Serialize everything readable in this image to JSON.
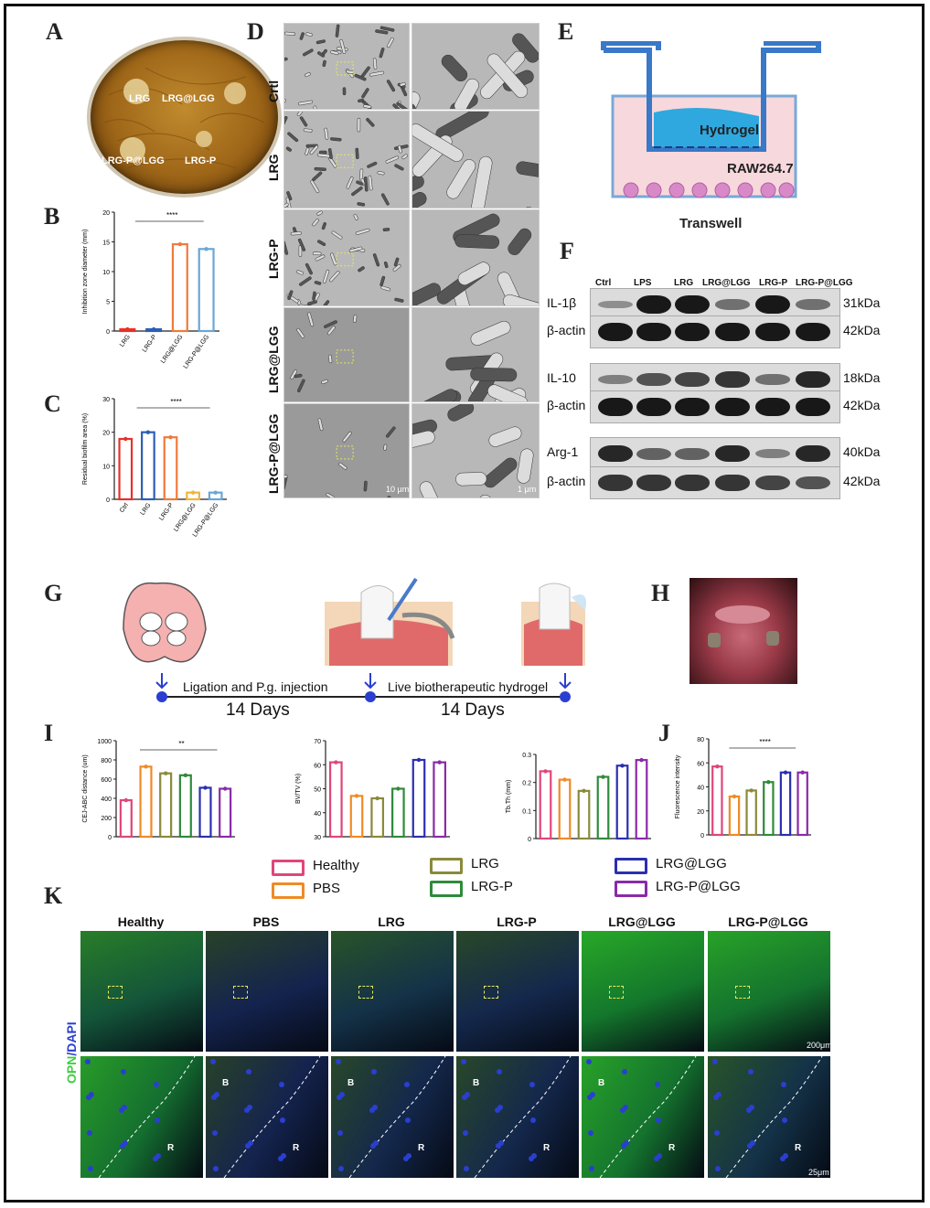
{
  "panels": {
    "A": "A",
    "B": "B",
    "C": "C",
    "D": "D",
    "E": "E",
    "F": "F",
    "G": "G",
    "H": "H",
    "I": "I",
    "J": "J",
    "K": "K"
  },
  "panelA": {
    "labels": [
      "LRG",
      "LRG@LGG",
      "LRG-P@LGG",
      "LRG-P"
    ]
  },
  "panelD": {
    "rows": [
      "Crtl",
      "LRG",
      "LRG-P",
      "LRG@LGG",
      "LRG-P@LGG"
    ],
    "scale_left": "10 μm",
    "scale_right": "1 μm"
  },
  "panelE": {
    "hydrogel": "Hydrogel",
    "cells": "RAW264.7",
    "transwell": "Transwell"
  },
  "panelF": {
    "lanes": [
      "Ctrl",
      "LPS",
      "LRG",
      "LRG@LGG",
      "LRG-P",
      "LRG-P@LGG"
    ],
    "rows": [
      {
        "label": "IL-1β",
        "kda": "31kDa"
      },
      {
        "label": "β-actin",
        "kda": "42kDa"
      },
      {
        "label": "IL-10",
        "kda": "18kDa"
      },
      {
        "label": "β-actin",
        "kda": "42kDa"
      },
      {
        "label": "Arg-1",
        "kda": "40kDa"
      },
      {
        "label": "β-actin",
        "kda": "42kDa"
      }
    ]
  },
  "panelG": {
    "step1": "Ligation and P.g. injection",
    "days1": "14 Days",
    "step2": "Live biotherapeutic hydrogel",
    "days2": "14 Days"
  },
  "legend": [
    {
      "name": "Healthy",
      "color": "#e0457b"
    },
    {
      "name": "PBS",
      "color": "#f08a24"
    },
    {
      "name": "LRG",
      "color": "#8a8a3a"
    },
    {
      "name": "LRG-P",
      "color": "#2e8b3a"
    },
    {
      "name": "LRG@LGG",
      "color": "#2a2fb0"
    },
    {
      "name": "LRG-P@LGG",
      "color": "#8a2aa8"
    }
  ],
  "panelK": {
    "cols": [
      "Healthy",
      "PBS",
      "LRG",
      "LRG-P",
      "LRG@LGG",
      "LRG-P@LGG"
    ],
    "side_label_opn": "OPN",
    "side_label_dapi": "/DAPI",
    "scale_top": "200μm",
    "scale_bottom": "25μm",
    "B": "B",
    "R": "R"
  },
  "chart_data": [
    {
      "id": "B",
      "type": "bar",
      "categories": [
        "LRG",
        "LRG-P",
        "LRG@LGG",
        "LRG-P@LGG"
      ],
      "values": [
        0.3,
        0.3,
        14.6,
        13.8
      ],
      "colors": [
        "#e8302a",
        "#2b5fb4",
        "#f07a3a",
        "#6aa6d6"
      ],
      "ylabel": "Inhibition zone diameter (mm)",
      "ylim": [
        0,
        20
      ],
      "yticks": [
        0,
        5,
        10,
        15,
        20
      ],
      "sig": "****"
    },
    {
      "id": "C",
      "type": "bar",
      "categories": [
        "Ctrl",
        "LRG",
        "LRG-P",
        "LRG@LGG",
        "LRG-P@LGG"
      ],
      "values": [
        18,
        20,
        18.5,
        2,
        2
      ],
      "colors": [
        "#e8302a",
        "#2b5fb4",
        "#f07a3a",
        "#f0b43a",
        "#6aa6d6"
      ],
      "ylabel": "Residual biofilm area (%)",
      "ylim": [
        0,
        30
      ],
      "yticks": [
        0,
        10,
        20,
        30
      ],
      "sig": "****"
    },
    {
      "id": "I1",
      "type": "bar",
      "categories": [
        "Healthy",
        "PBS",
        "LRG",
        "LRG-P",
        "LRG@LGG",
        "LRG-P@LGG"
      ],
      "values": [
        380,
        730,
        660,
        640,
        510,
        500
      ],
      "ylabel": "CEJ-ABC distance (um)",
      "ylim": [
        0,
        1000
      ],
      "yticks": [
        0,
        200,
        400,
        600,
        800,
        1000
      ],
      "sig": "**"
    },
    {
      "id": "I2",
      "type": "bar",
      "categories": [
        "Healthy",
        "PBS",
        "LRG",
        "LRG-P",
        "LRG@LGG",
        "LRG-P@LGG"
      ],
      "values": [
        61,
        47,
        46,
        50,
        62,
        61
      ],
      "ylabel": "BV/TV (%)",
      "ylim": [
        30,
        70
      ],
      "yticks": [
        30,
        40,
        50,
        60,
        70
      ],
      "sig": ""
    },
    {
      "id": "I3",
      "type": "bar",
      "categories": [
        "Healthy",
        "PBS",
        "LRG",
        "LRG-P",
        "LRG@LGG",
        "LRG-P@LGG"
      ],
      "values": [
        0.24,
        0.21,
        0.17,
        0.22,
        0.26,
        0.28
      ],
      "ylabel": "Tb.Th (mm)",
      "ylim": [
        0,
        0.3
      ],
      "yticks": [
        0.0,
        0.1,
        0.2,
        0.3
      ],
      "sig": ""
    },
    {
      "id": "J",
      "type": "bar",
      "categories": [
        "Healthy",
        "PBS",
        "LRG",
        "LRG-P",
        "LRG@LGG",
        "LRG-P@LGG"
      ],
      "values": [
        57,
        32,
        37,
        44,
        52,
        52
      ],
      "ylabel": "Fluorescence intensity",
      "ylim": [
        0,
        80
      ],
      "yticks": [
        0,
        20,
        40,
        60,
        80
      ],
      "sig": "****"
    }
  ]
}
